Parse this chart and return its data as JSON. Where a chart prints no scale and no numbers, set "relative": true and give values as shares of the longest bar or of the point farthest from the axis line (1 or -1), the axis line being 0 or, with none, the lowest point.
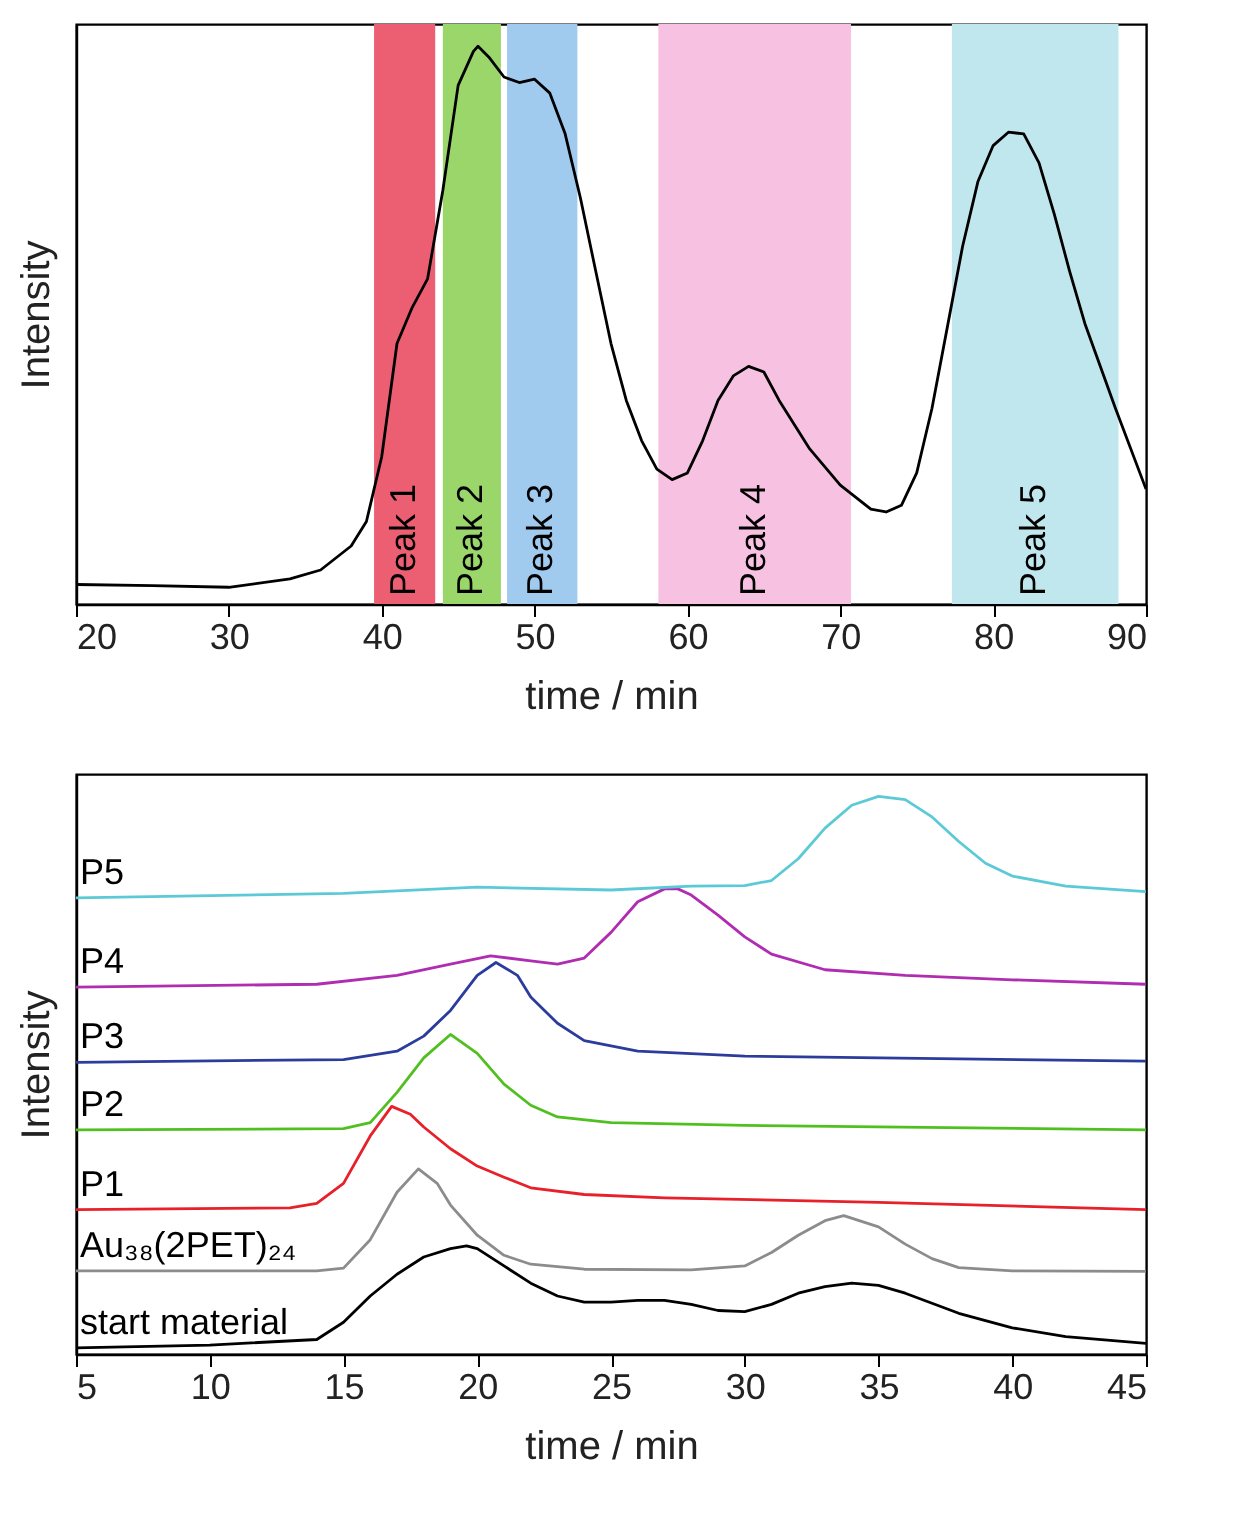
{
  "chart_data": [
    {
      "type": "line",
      "xlabel": "time / min",
      "ylabel": "Intensity",
      "relative": true,
      "xlim": [
        20,
        90
      ],
      "xticks": [
        20,
        30,
        40,
        50,
        60,
        70,
        80,
        90
      ],
      "bands": [
        {
          "axis": "x",
          "from": 39.5,
          "to": 43.5,
          "label": "Peak 1",
          "color": "#ec5f72"
        },
        {
          "axis": "x",
          "from": 44,
          "to": 47.8,
          "label": "Peak 2",
          "color": "#9bd66b"
        },
        {
          "axis": "x",
          "from": 48.2,
          "to": 52.8,
          "label": "Peak 3",
          "color": "#a0caee"
        },
        {
          "axis": "x",
          "from": 58.1,
          "to": 70.7,
          "label": "Peak 4",
          "color": "#f7c2e2"
        },
        {
          "axis": "x",
          "from": 77.3,
          "to": 88.2,
          "label": "Peak 5",
          "color": "#c0e7ed"
        }
      ],
      "x": [
        20,
        25,
        30,
        34,
        36,
        38,
        39,
        40,
        41,
        42,
        43,
        44,
        45,
        46,
        46.3,
        47,
        48,
        49,
        50,
        51,
        52,
        53,
        54,
        55,
        56,
        57,
        58,
        59,
        60,
        61,
        62,
        63,
        64,
        65,
        66,
        68,
        70,
        72,
        73,
        74,
        75,
        76,
        77,
        78,
        79,
        80,
        81,
        82,
        83,
        84,
        85,
        86,
        88,
        90
      ],
      "series": [
        {
          "color": "#000000",
          "values": [
            0.035,
            0.033,
            0.03,
            0.045,
            0.061,
            0.104,
            0.148,
            0.264,
            0.467,
            0.532,
            0.583,
            0.742,
            0.93,
            0.991,
            1.0,
            0.981,
            0.945,
            0.935,
            0.941,
            0.916,
            0.843,
            0.728,
            0.597,
            0.467,
            0.365,
            0.293,
            0.242,
            0.223,
            0.235,
            0.293,
            0.365,
            0.409,
            0.426,
            0.416,
            0.365,
            0.278,
            0.213,
            0.17,
            0.165,
            0.177,
            0.235,
            0.351,
            0.496,
            0.641,
            0.757,
            0.822,
            0.846,
            0.843,
            0.791,
            0.699,
            0.597,
            0.503,
            0.351,
            0.206
          ]
        }
      ]
    },
    {
      "type": "line",
      "xlabel": "time / min",
      "ylabel": "Intensity",
      "relative": true,
      "xlim": [
        5,
        45
      ],
      "xticks": [
        5,
        10,
        15,
        20,
        25,
        30,
        35,
        40,
        45
      ],
      "series": [
        {
          "name": "start material",
          "color": "#000000",
          "x": [
            5,
            10,
            14,
            15,
            16,
            17,
            18,
            19,
            19.6,
            20,
            21,
            22,
            23,
            24,
            25,
            26,
            27,
            28,
            29,
            30,
            31,
            32,
            33,
            34,
            35,
            36,
            38,
            40,
            42,
            45
          ],
          "values": [
            0.011,
            0.016,
            0.026,
            0.057,
            0.104,
            0.143,
            0.174,
            0.189,
            0.194,
            0.189,
            0.158,
            0.127,
            0.104,
            0.093,
            0.093,
            0.096,
            0.096,
            0.089,
            0.078,
            0.076,
            0.089,
            0.109,
            0.121,
            0.127,
            0.123,
            0.109,
            0.073,
            0.047,
            0.031,
            0.019
          ]
        },
        {
          "name": "Au₃₈(2PET)₂₄",
          "color": "#8c8c8c",
          "x": [
            5,
            14,
            15,
            16,
            17,
            17.8,
            18.5,
            19,
            20,
            21,
            22,
            24,
            28,
            30,
            31,
            32,
            33,
            33.7,
            35,
            36,
            37,
            38,
            40,
            45
          ],
          "values": [
            0.149,
            0.149,
            0.154,
            0.205,
            0.29,
            0.332,
            0.306,
            0.267,
            0.213,
            0.177,
            0.161,
            0.152,
            0.151,
            0.158,
            0.182,
            0.213,
            0.239,
            0.248,
            0.228,
            0.197,
            0.171,
            0.155,
            0.149,
            0.148
          ]
        },
        {
          "name": "P1",
          "color": "#e8202a",
          "x": [
            5,
            13,
            14,
            15,
            16,
            16.8,
            17.5,
            18,
            19,
            20,
            21,
            22,
            24,
            27,
            35,
            45
          ],
          "values": [
            0.259,
            0.262,
            0.27,
            0.306,
            0.391,
            0.444,
            0.43,
            0.407,
            0.368,
            0.337,
            0.317,
            0.298,
            0.286,
            0.28,
            0.272,
            0.259
          ]
        },
        {
          "name": "P2",
          "color": "#50c020",
          "x": [
            5,
            15,
            16,
            17,
            18,
            19,
            20,
            21,
            22,
            23,
            25,
            30,
            45
          ],
          "values": [
            0.402,
            0.404,
            0.415,
            0.469,
            0.531,
            0.573,
            0.539,
            0.484,
            0.446,
            0.425,
            0.415,
            0.41,
            0.402
          ]
        },
        {
          "name": "P3",
          "color": "#2c3c9c",
          "x": [
            5,
            15,
            17,
            18,
            19,
            20,
            20.7,
            21.5,
            22,
            23,
            24,
            26,
            30,
            45
          ],
          "values": [
            0.523,
            0.528,
            0.543,
            0.57,
            0.616,
            0.679,
            0.702,
            0.679,
            0.64,
            0.593,
            0.562,
            0.543,
            0.534,
            0.525
          ]
        },
        {
          "name": "P4",
          "color": "#b02cb0",
          "x": [
            5,
            14,
            17,
            19,
            20.5,
            22,
            23,
            24,
            25,
            26,
            27,
            27.5,
            28,
            29,
            30,
            31,
            33,
            36,
            40,
            45
          ],
          "values": [
            0.658,
            0.663,
            0.679,
            0.699,
            0.714,
            0.705,
            0.699,
            0.71,
            0.756,
            0.811,
            0.834,
            0.834,
            0.823,
            0.787,
            0.748,
            0.717,
            0.689,
            0.679,
            0.671,
            0.663
          ]
        },
        {
          "name": "P5",
          "color": "#5ccad6",
          "x": [
            5,
            15,
            20,
            25,
            28,
            30,
            31,
            32,
            33,
            34,
            35,
            36,
            37,
            38,
            39,
            40,
            42,
            45
          ],
          "values": [
            0.818,
            0.826,
            0.837,
            0.832,
            0.839,
            0.84,
            0.849,
            0.888,
            0.943,
            0.984,
            1.0,
            0.994,
            0.963,
            0.919,
            0.88,
            0.857,
            0.839,
            0.829
          ]
        }
      ]
    }
  ]
}
